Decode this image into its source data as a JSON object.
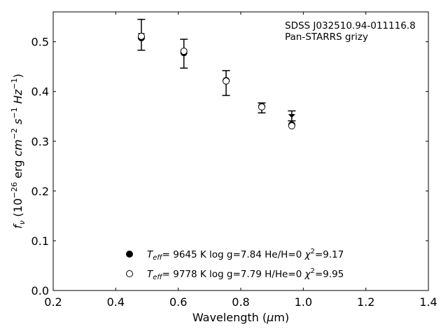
{
  "chart_data": {
    "type": "scatter",
    "title": "",
    "annotations": [
      "SDSS J032510.94-011116.8",
      "Pan-STARRS grizy"
    ],
    "xlabel": {
      "pre": "Wavelength (",
      "greek": "μ",
      "post": "m)"
    },
    "ylabel": {
      "f": "f",
      "fsub": "ν",
      "a": " (10",
      "aexp": "−26",
      "b": " erg ",
      "c": "cm",
      "cexp": "−2",
      "d": " s",
      "dexp": "−1",
      "e": " ",
      "hz": "Hz",
      "hzexp": "−1",
      "f2": ")"
    },
    "xlim": [
      0.2,
      1.4
    ],
    "ylim": [
      0.0,
      0.56
    ],
    "xticks": [
      0.2,
      0.4,
      0.6,
      0.8,
      1.0,
      1.2,
      1.4
    ],
    "xtick_labels": [
      "0.2",
      "0.4",
      "0.6",
      "0.8",
      "1.0",
      "1.2",
      "1.4"
    ],
    "yticks": [
      0.0,
      0.1,
      0.2,
      0.3,
      0.4,
      0.5
    ],
    "ytick_labels": [
      "0.0",
      "0.1",
      "0.2",
      "0.3",
      "0.4",
      "0.5"
    ],
    "observed": {
      "x": [
        0.482,
        0.618,
        0.753,
        0.867,
        0.963
      ],
      "y": [
        0.514,
        0.476,
        0.417,
        0.367,
        0.351
      ],
      "yerr": [
        0.031,
        0.029,
        0.025,
        0.01,
        0.01
      ]
    },
    "series": [
      {
        "name": "filled",
        "marker": "filled-circle",
        "x": [
          0.482,
          0.618,
          0.753,
          0.867,
          0.963
        ],
        "y": [
          0.508,
          0.478,
          0.422,
          0.37,
          0.333
        ]
      },
      {
        "name": "open",
        "marker": "open-circle",
        "x": [
          0.482,
          0.618,
          0.753,
          0.867,
          0.963
        ],
        "y": [
          0.511,
          0.481,
          0.421,
          0.369,
          0.331
        ]
      }
    ],
    "legend": {
      "placement": "lower-center",
      "entries": [
        {
          "marker": "filled-circle",
          "t": "T",
          "tsub": "eff",
          "pre": "=  9645 K  log g=7.84  He/H=0  ",
          "chi": "χ",
          "chiexp": "2",
          "post": "=9.17"
        },
        {
          "marker": "open-circle",
          "t": "T",
          "tsub": "eff",
          "pre": "=  9778 K  log g=7.79  H/He=0  ",
          "chi": "χ",
          "chiexp": "2",
          "post": "=9.95"
        }
      ]
    },
    "colors": {
      "marker": "#000000",
      "axes": "#000000",
      "background": "#ffffff"
    },
    "grid": false
  }
}
